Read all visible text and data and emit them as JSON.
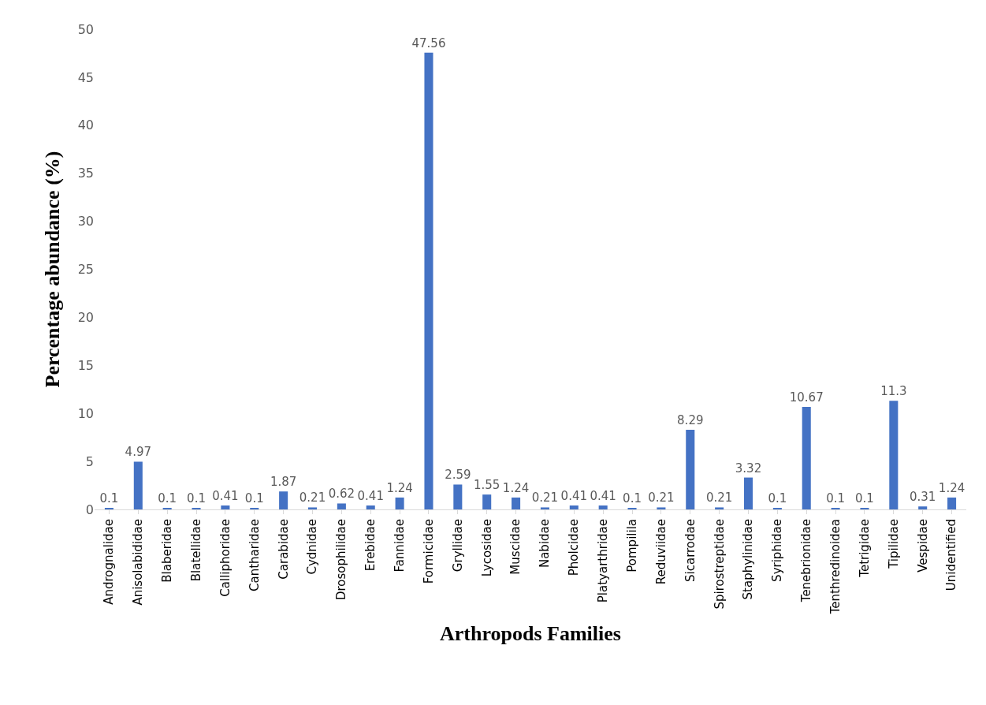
{
  "chart_data": {
    "type": "bar",
    "xlabel": "Arthropods Families",
    "ylabel": "Percentage abundance (%)",
    "categories": [
      "Andrognalidae",
      "Anisolabididae",
      "Blaberidae",
      "Blatellidae",
      "Calliphoridae",
      "Cantharidae",
      "Carabidae",
      "Cydnidae",
      "Drosophilidae",
      "Erebidae",
      "Fannidae",
      "Formicidae",
      "Gryllidae",
      "Lycosidae",
      "Muscidae",
      "Nabidae",
      "Pholcidae",
      "Platyarthridae",
      "Pompilila",
      "Reduviidae",
      "Sicarrodae",
      "Spirostreptidae",
      "Staphylinidae",
      "Syriphidae",
      "Tenebrionidae",
      "Tenthredinoidea",
      "Tetrigidae",
      "Tipilidae",
      "Vespidae",
      "Unidentified"
    ],
    "values": [
      0.1,
      4.97,
      0.1,
      0.1,
      0.41,
      0.1,
      1.87,
      0.21,
      0.62,
      0.41,
      1.24,
      47.56,
      2.59,
      1.55,
      1.24,
      0.21,
      0.41,
      0.41,
      0.1,
      0.21,
      8.29,
      0.21,
      3.32,
      0.1,
      10.67,
      0.1,
      0.1,
      11.3,
      0.31,
      1.24
    ],
    "color": "#4472c4",
    "ylim": [
      0,
      50
    ],
    "yticks": [
      0,
      5,
      10,
      15,
      20,
      25,
      30,
      35,
      40,
      45,
      50
    ],
    "data_labels": true
  }
}
